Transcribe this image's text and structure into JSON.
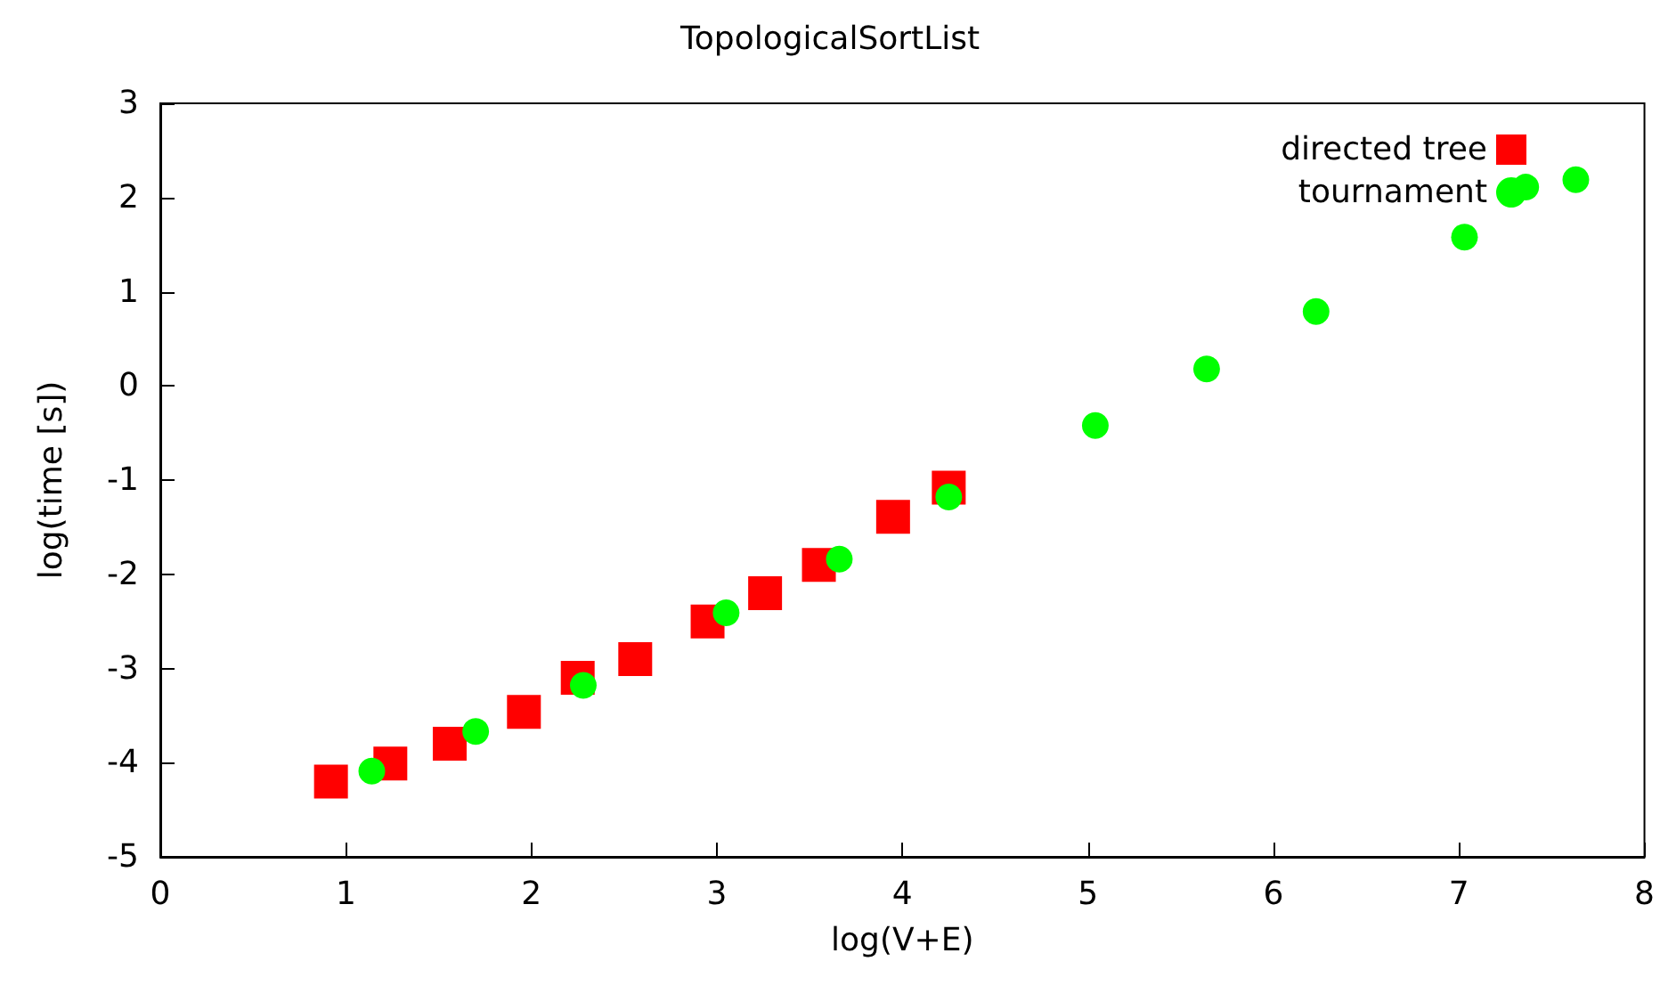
{
  "chart_data": {
    "type": "scatter",
    "title": "TopologicalSortList",
    "xlabel": "log(V+E)",
    "ylabel": "log(time [s])",
    "xlim": [
      0,
      8
    ],
    "xticks": [
      0,
      1,
      2,
      3,
      4,
      5,
      6,
      7,
      8
    ],
    "ylim": [
      -5,
      3
    ],
    "yticks": [
      -5,
      -4,
      -3,
      -2,
      -1,
      0,
      1,
      2,
      3
    ],
    "grid": false,
    "legend": "top right",
    "series": [
      {
        "name": "directed tree",
        "color": "#ff0000",
        "marker": "square",
        "x": [
          0.92,
          1.24,
          1.56,
          1.96,
          2.25,
          2.56,
          2.95,
          3.26,
          3.55,
          3.95,
          4.25
        ],
        "values": [
          -4.2,
          -4.01,
          -3.8,
          -3.46,
          -3.1,
          -2.9,
          -2.5,
          -2.2,
          -1.9,
          -1.39,
          -1.08
        ]
      },
      {
        "name": "tournament",
        "color": "#00ff00",
        "marker": "circle",
        "x": [
          1.14,
          1.7,
          2.28,
          3.05,
          3.66,
          4.25,
          5.04,
          5.64,
          6.23,
          7.03,
          7.36,
          7.63
        ],
        "values": [
          -4.09,
          -3.67,
          -3.18,
          -2.41,
          -1.84,
          -1.18,
          -0.42,
          0.18,
          0.79,
          1.58,
          2.11,
          2.19
        ]
      }
    ]
  }
}
